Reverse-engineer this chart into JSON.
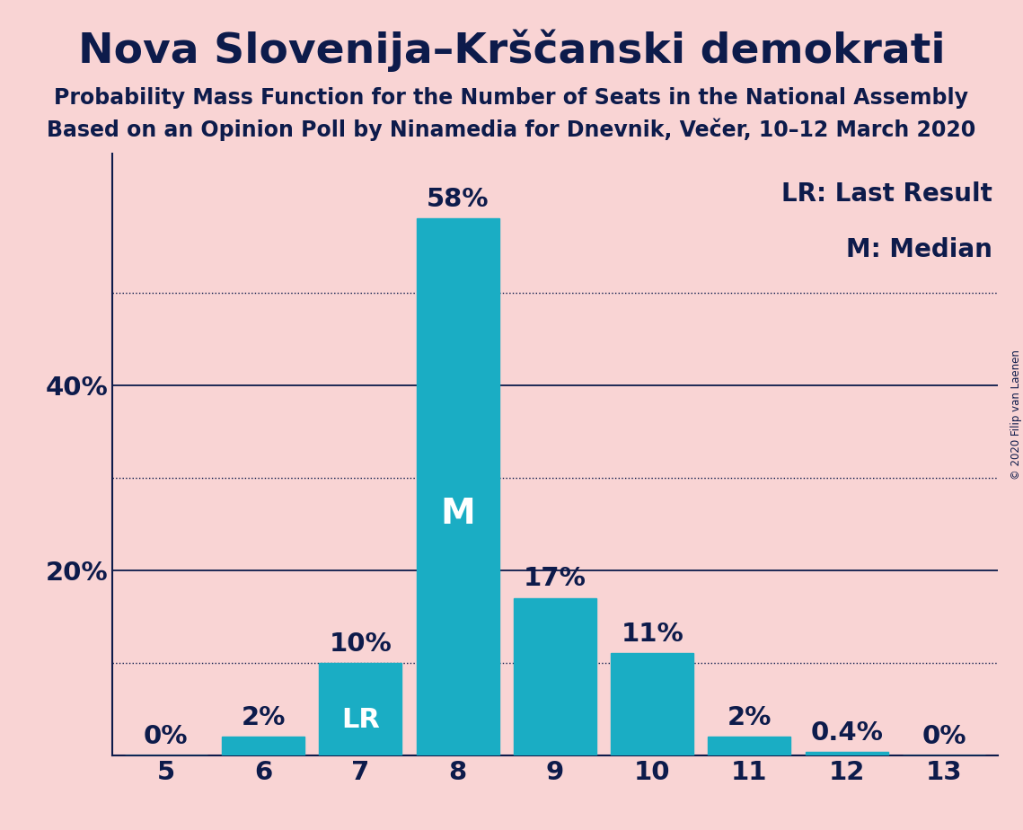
{
  "title": "Nova Slovenija–Krščanski demokrati",
  "subtitle1": "Probability Mass Function for the Number of Seats in the National Assembly",
  "subtitle2": "Based on an Opinion Poll by Ninamedia for Dnevnik, Večer, 10–12 March 2020",
  "copyright": "© 2020 Filip van Laenen",
  "legend_line1": "LR: Last Result",
  "legend_line2": "M: Median",
  "categories": [
    5,
    6,
    7,
    8,
    9,
    10,
    11,
    12,
    13
  ],
  "values": [
    0,
    2,
    10,
    58,
    17,
    11,
    2,
    0.4,
    0
  ],
  "bar_color": "#1aadc4",
  "background_color": "#f9d4d4",
  "text_color": "#0d1b4b",
  "ylabel_ticks": [
    20,
    40
  ],
  "ylabel_tick_labels": [
    "20%",
    "40%"
  ],
  "dotted_lines": [
    10,
    30,
    50
  ],
  "solid_lines": [
    20,
    40
  ],
  "ylim": [
    0,
    65
  ],
  "lr_bar_idx": 2,
  "median_bar_idx": 3,
  "bar_labels": [
    "0%",
    "2%",
    "10%",
    "58%",
    "17%",
    "11%",
    "2%",
    "0.4%",
    "0%"
  ],
  "title_fontsize": 34,
  "subtitle_fontsize": 17,
  "tick_fontsize": 21,
  "label_fontsize": 21,
  "lr_label_fontsize": 22,
  "m_label_fontsize": 28,
  "legend_fontsize": 20
}
